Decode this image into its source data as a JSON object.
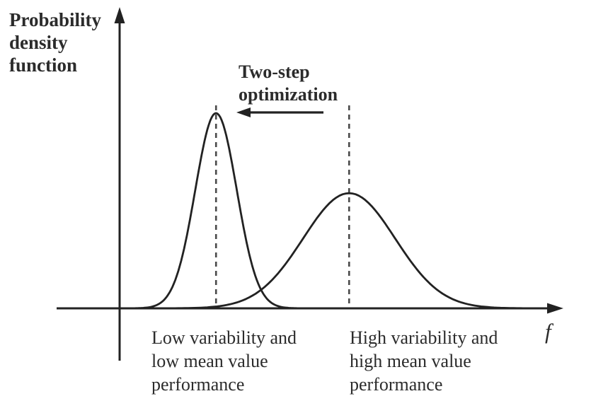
{
  "figure": {
    "y_axis_label": "Probability density function",
    "x_axis_label": "f",
    "annotation_text": "Two-step optimization",
    "left_curve_label": "Low variability and low mean value performance",
    "right_curve_label": "High variability and high mean value performance"
  },
  "colors": {
    "curve_line": "#222222",
    "axis_line": "#222222",
    "dashed_line": "#4a4a4a",
    "text": "#2b2b2b",
    "background": "#ffffff"
  },
  "chart_data": {
    "type": "line",
    "title": "",
    "xlabel": "f",
    "ylabel": "Probability density function",
    "grid": false,
    "axis_ticks": "none (schematic, unlabeled axes)",
    "x_range_relative": [
      0,
      1
    ],
    "y_range_relative": [
      0,
      1.05
    ],
    "series": [
      {
        "name": "Low variability and low mean value performance",
        "shape": "normal-pdf",
        "mean_frac": 0.315,
        "sigma_frac": 0.041,
        "peak_rel": 1.0,
        "dashed_vertical_line_at_mean": true
      },
      {
        "name": "High variability and high mean value performance",
        "shape": "normal-pdf",
        "mean_frac": 0.578,
        "sigma_frac": 0.091,
        "peak_rel": 0.59,
        "dashed_vertical_line_at_mean": true
      }
    ],
    "annotation": {
      "text": "Two-step optimization",
      "arrow_direction": "left",
      "arrow_from_series": "High variability and high mean value performance",
      "arrow_to_series": "Low variability and low mean value performance"
    }
  }
}
